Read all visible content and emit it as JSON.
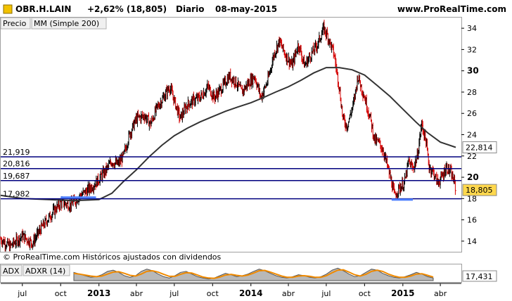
{
  "header": {
    "symbol": "OBR.H.LAIN",
    "change": "+2,62% (18,805)",
    "period": "Diario",
    "date": "08-may-2015",
    "website": "www.ProRealTime.com"
  },
  "legend": {
    "price": "Precio",
    "ma": "MM (Simple 200)"
  },
  "copyright": "© ProRealTime.com Históricos ajustados con dividendos",
  "indicator": {
    "adx_label": "ADX",
    "adxr_label": "ADXR (14)",
    "value_tag": "17,431",
    "adx": [
      35,
      30,
      25,
      20,
      22,
      28,
      38,
      42,
      35,
      25,
      20,
      25,
      38,
      45,
      40,
      30,
      22,
      18,
      25,
      35,
      38,
      30,
      22,
      18,
      15,
      18,
      25,
      32,
      28,
      22,
      25,
      30,
      38,
      45,
      40,
      32,
      25,
      20,
      18,
      22,
      28,
      25,
      20,
      18,
      22,
      30,
      42,
      48,
      40,
      30,
      22,
      25,
      35,
      45,
      42,
      32,
      25,
      20,
      18,
      22,
      28,
      35,
      30,
      22,
      18
    ],
    "adxr": [
      32,
      30,
      27,
      24,
      22,
      24,
      30,
      36,
      37,
      32,
      26,
      24,
      30,
      38,
      40,
      36,
      29,
      23,
      23,
      29,
      34,
      33,
      27,
      21,
      18,
      17,
      21,
      27,
      29,
      26,
      24,
      27,
      33,
      40,
      41,
      36,
      30,
      24,
      20,
      20,
      24,
      25,
      23,
      20,
      20,
      25,
      34,
      42,
      43,
      36,
      28,
      24,
      29,
      38,
      42,
      38,
      30,
      24,
      20,
      20,
      24,
      30,
      31,
      26,
      21
    ]
  },
  "chart_data": {
    "type": "line",
    "title": "OBR.H.LAIN",
    "xlabel": "",
    "ylabel": "",
    "ylim": [
      13,
      35
    ],
    "grid": false,
    "x_ticks": [
      {
        "date": "2012-07-01",
        "label": "jul",
        "bold": false
      },
      {
        "date": "2012-10-01",
        "label": "oct",
        "bold": false
      },
      {
        "date": "2013-01-01",
        "label": "2013",
        "bold": true
      },
      {
        "date": "2013-04-01",
        "label": "abr",
        "bold": false
      },
      {
        "date": "2013-07-01",
        "label": "jul",
        "bold": false
      },
      {
        "date": "2013-10-01",
        "label": "oct",
        "bold": false
      },
      {
        "date": "2014-01-01",
        "label": "2014",
        "bold": true
      },
      {
        "date": "2014-04-01",
        "label": "abr",
        "bold": false
      },
      {
        "date": "2014-07-01",
        "label": "jul",
        "bold": false
      },
      {
        "date": "2014-10-01",
        "label": "oct",
        "bold": false
      },
      {
        "date": "2015-01-01",
        "label": "2015",
        "bold": true
      },
      {
        "date": "2015-04-01",
        "label": "abr",
        "bold": false
      }
    ],
    "x_range": [
      "2012-05-10",
      "2015-05-08"
    ],
    "y_ticks": [
      14,
      16,
      18,
      20,
      22,
      24,
      26,
      28,
      30,
      32,
      34
    ],
    "y_tick_labels": [
      "14",
      "16",
      "18",
      "20",
      "22",
      "24",
      "26",
      "28",
      "30",
      "32",
      "34"
    ],
    "bold_ticks": [
      20,
      30
    ],
    "series": [
      {
        "name": "Precio",
        "color": "#000000",
        "down_color": "#d40000",
        "points": [
          [
            "2012-05-10",
            14.2
          ],
          [
            "2012-06-01",
            13.5
          ],
          [
            "2012-07-01",
            14.5
          ],
          [
            "2012-07-25",
            13.8
          ],
          [
            "2012-08-15",
            15.2
          ],
          [
            "2012-09-10",
            16.6
          ],
          [
            "2012-10-01",
            17.6
          ],
          [
            "2012-10-25",
            17.4
          ],
          [
            "2012-11-15",
            18.2
          ],
          [
            "2012-12-05",
            18.8
          ],
          [
            "2012-12-25",
            19.5
          ],
          [
            "2013-01-15",
            20.5
          ],
          [
            "2013-02-01",
            21.5
          ],
          [
            "2013-02-15",
            21.2
          ],
          [
            "2013-03-01",
            22.0
          ],
          [
            "2013-03-15",
            24.0
          ],
          [
            "2013-04-01",
            25.5
          ],
          [
            "2013-04-20",
            25.8
          ],
          [
            "2013-05-05",
            25.0
          ],
          [
            "2013-05-20",
            26.5
          ],
          [
            "2013-06-05",
            27.5
          ],
          [
            "2013-06-20",
            28.5
          ],
          [
            "2013-07-01",
            27.2
          ],
          [
            "2013-07-15",
            25.5
          ],
          [
            "2013-08-01",
            26.8
          ],
          [
            "2013-08-15",
            27.2
          ],
          [
            "2013-09-01",
            27.5
          ],
          [
            "2013-09-20",
            28.5
          ],
          [
            "2013-10-05",
            27.5
          ],
          [
            "2013-10-25",
            28.5
          ],
          [
            "2013-11-10",
            29.5
          ],
          [
            "2013-11-25",
            29.0
          ],
          [
            "2013-12-10",
            28.0
          ],
          [
            "2013-12-25",
            28.8
          ],
          [
            "2014-01-10",
            29.5
          ],
          [
            "2014-01-25",
            27.5
          ],
          [
            "2014-02-10",
            29.0
          ],
          [
            "2014-02-25",
            31.5
          ],
          [
            "2014-03-10",
            32.8
          ],
          [
            "2014-03-25",
            31.5
          ],
          [
            "2014-04-10",
            30.5
          ],
          [
            "2014-04-25",
            32.5
          ],
          [
            "2014-05-10",
            30.5
          ],
          [
            "2014-05-25",
            31.5
          ],
          [
            "2014-06-10",
            32.5
          ],
          [
            "2014-06-25",
            34.0
          ],
          [
            "2014-07-05",
            33.2
          ],
          [
            "2014-07-20",
            31.5
          ],
          [
            "2014-08-01",
            28.5
          ],
          [
            "2014-08-10",
            25.5
          ],
          [
            "2014-08-20",
            24.8
          ],
          [
            "2014-09-05",
            27.0
          ],
          [
            "2014-09-15",
            29.5
          ],
          [
            "2014-10-01",
            27.5
          ],
          [
            "2014-10-15",
            25.5
          ],
          [
            "2014-10-25",
            23.5
          ],
          [
            "2014-11-05",
            23.2
          ],
          [
            "2014-11-15",
            22.5
          ],
          [
            "2014-11-25",
            21.0
          ],
          [
            "2014-12-05",
            19.5
          ],
          [
            "2014-12-12",
            18.2
          ],
          [
            "2014-12-20",
            18.8
          ],
          [
            "2015-01-05",
            19.5
          ],
          [
            "2015-01-15",
            21.5
          ],
          [
            "2015-01-25",
            20.8
          ],
          [
            "2015-02-05",
            22.0
          ],
          [
            "2015-02-15",
            25.0
          ],
          [
            "2015-02-25",
            23.5
          ],
          [
            "2015-03-05",
            21.0
          ],
          [
            "2015-03-15",
            20.5
          ],
          [
            "2015-03-25",
            19.5
          ],
          [
            "2015-04-05",
            20.0
          ],
          [
            "2015-04-15",
            21.0
          ],
          [
            "2015-04-25",
            20.5
          ],
          [
            "2015-05-05",
            19.5
          ],
          [
            "2015-05-08",
            18.8
          ]
        ]
      },
      {
        "name": "MM (Simple 200)",
        "color": "#333333",
        "points": [
          [
            "2012-05-10",
            18.3
          ],
          [
            "2012-07-01",
            18.0
          ],
          [
            "2012-09-01",
            17.9
          ],
          [
            "2012-11-01",
            17.8
          ],
          [
            "2013-01-01",
            17.9
          ],
          [
            "2013-02-01",
            18.5
          ],
          [
            "2013-03-01",
            19.6
          ],
          [
            "2013-04-01",
            20.7
          ],
          [
            "2013-05-01",
            21.9
          ],
          [
            "2013-06-01",
            23.0
          ],
          [
            "2013-07-01",
            23.9
          ],
          [
            "2013-08-01",
            24.6
          ],
          [
            "2013-09-01",
            25.2
          ],
          [
            "2013-10-01",
            25.7
          ],
          [
            "2013-11-01",
            26.2
          ],
          [
            "2013-12-01",
            26.6
          ],
          [
            "2014-01-01",
            27.0
          ],
          [
            "2014-02-01",
            27.5
          ],
          [
            "2014-03-01",
            28.0
          ],
          [
            "2014-04-01",
            28.5
          ],
          [
            "2014-05-01",
            29.1
          ],
          [
            "2014-06-01",
            29.8
          ],
          [
            "2014-07-01",
            30.3
          ],
          [
            "2014-08-01",
            30.3
          ],
          [
            "2014-09-01",
            30.1
          ],
          [
            "2014-10-01",
            29.6
          ],
          [
            "2014-11-01",
            28.6
          ],
          [
            "2014-12-01",
            27.6
          ],
          [
            "2015-01-01",
            26.4
          ],
          [
            "2015-02-01",
            25.2
          ],
          [
            "2015-03-01",
            24.2
          ],
          [
            "2015-04-01",
            23.3
          ],
          [
            "2015-05-08",
            22.81
          ]
        ]
      }
    ],
    "horizontal_levels": [
      {
        "value": 21.919,
        "label": "21,919"
      },
      {
        "value": 20.816,
        "label": "20,816"
      },
      {
        "value": 19.687,
        "label": "19,687"
      },
      {
        "value": 17.982,
        "label": "17,982"
      }
    ],
    "support_marks": [
      {
        "from": "2012-10-01",
        "to": "2012-12-25",
        "value": 18.1
      },
      {
        "from": "2014-12-05",
        "to": "2015-01-25",
        "value": 17.9
      }
    ],
    "value_tags": [
      {
        "value": 22.814,
        "label": "22,814",
        "color": "#ffffff"
      },
      {
        "value": 18.805,
        "label": "18,805",
        "color": "#ffd84d"
      }
    ],
    "level_color": "#00007f",
    "support_color": "#4d7fff",
    "tag_border_color": "#888888"
  }
}
